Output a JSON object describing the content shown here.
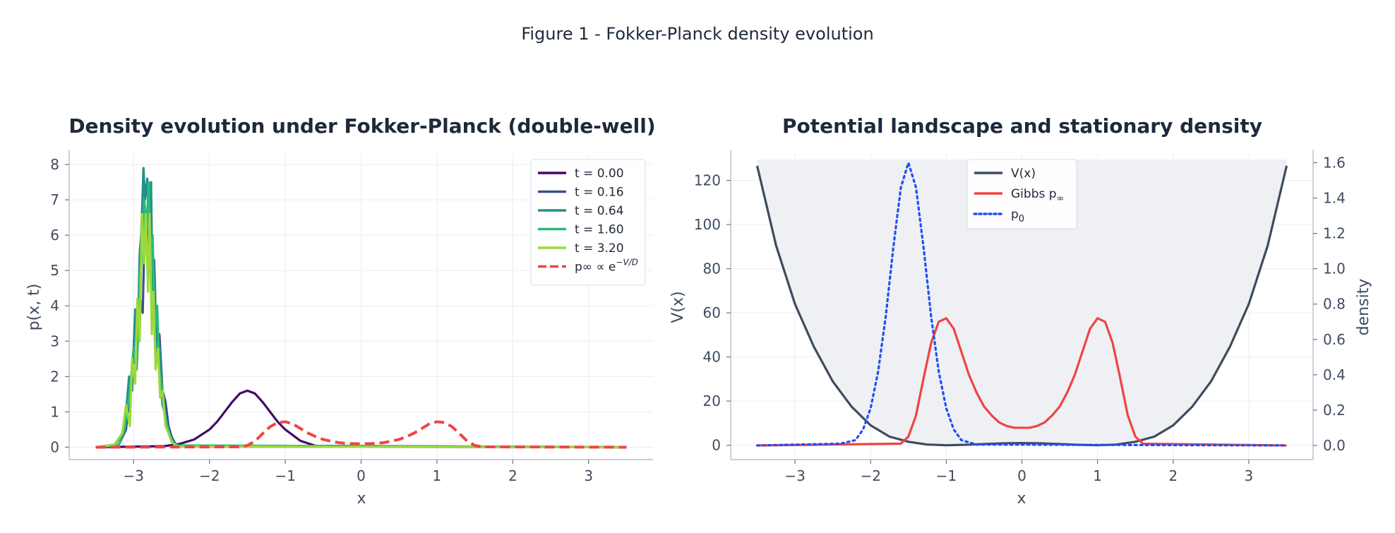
{
  "figure": {
    "suptitle": "Figure 1 - Fokker-Planck density evolution"
  },
  "colors": {
    "t0": "#440a68",
    "t1": "#3b528b",
    "t2": "#21908d",
    "t3": "#2db87a",
    "t4": "#9bd93c",
    "gibbs": "#ef4444",
    "potential": "#3f4b5e",
    "p0": "#1f4ff5",
    "fill": "#eef0f3"
  },
  "chart_data": [
    {
      "type": "line",
      "title": "Density evolution under Fokker-Planck (double-well)",
      "xlabel": "x",
      "ylabel": "p(x, t)",
      "xlim": [
        -3.85,
        3.85
      ],
      "ylim": [
        -0.35,
        8.3
      ],
      "xticks": [
        -3,
        -2,
        -1,
        0,
        1,
        2,
        3
      ],
      "xtick_labels": [
        "−3",
        "−2",
        "−1",
        "0",
        "1",
        "2",
        "3"
      ],
      "yticks": [
        0,
        1,
        2,
        3,
        4,
        5,
        6,
        7,
        8
      ],
      "ytick_labels": [
        "0",
        "1",
        "2",
        "3",
        "4",
        "5",
        "6",
        "7",
        "8"
      ],
      "grid": true,
      "legend_position": "upper right",
      "series": [
        {
          "name": "t = 0.00",
          "color_key": "t0",
          "style": "solid",
          "x": [
            -3.5,
            -2.6,
            -2.4,
            -2.2,
            -2.0,
            -1.9,
            -1.8,
            -1.7,
            -1.6,
            -1.5,
            -1.4,
            -1.3,
            -1.2,
            -1.1,
            -1.0,
            -0.8,
            -0.6,
            3.5
          ],
          "y": [
            0,
            0.03,
            0.09,
            0.22,
            0.5,
            0.72,
            1.0,
            1.28,
            1.52,
            1.6,
            1.52,
            1.28,
            1.0,
            0.72,
            0.5,
            0.18,
            0.04,
            0
          ]
        },
        {
          "name": "t = 0.16",
          "color_key": "t1",
          "style": "solid",
          "x": [
            -3.5,
            -3.2,
            -3.1,
            -3.05,
            -3.0,
            -2.96,
            -2.92,
            -2.88,
            -2.85,
            -2.82,
            -2.79,
            -2.76,
            -2.73,
            -2.7,
            -2.66,
            -2.62,
            -2.58,
            -2.54,
            -2.5,
            -2.45,
            -2.4,
            3.5
          ],
          "y": [
            0,
            0.05,
            0.5,
            1.5,
            2.6,
            2.2,
            4.3,
            3.8,
            6.6,
            5.8,
            7.4,
            4.6,
            5.3,
            3.0,
            3.2,
            1.6,
            1.3,
            0.6,
            0.3,
            0.1,
            0.02,
            0
          ]
        },
        {
          "name": "t = 0.64",
          "color_key": "t2",
          "style": "solid",
          "x": [
            -3.5,
            -3.25,
            -3.15,
            -3.1,
            -3.06,
            -3.02,
            -2.98,
            -2.95,
            -2.92,
            -2.9,
            -2.87,
            -2.85,
            -2.82,
            -2.8,
            -2.77,
            -2.75,
            -2.72,
            -2.7,
            -2.66,
            -2.62,
            -2.58,
            -2.54,
            -2.48,
            -2.4,
            3.5
          ],
          "y": [
            0,
            0.05,
            0.4,
            1.0,
            2.0,
            1.6,
            3.9,
            2.8,
            5.5,
            6.0,
            7.9,
            7.0,
            7.6,
            6.1,
            7.5,
            4.0,
            4.8,
            2.5,
            2.8,
            1.2,
            0.9,
            0.4,
            0.15,
            0.02,
            0
          ]
        },
        {
          "name": "t = 1.60",
          "color_key": "t3",
          "style": "solid",
          "x": [
            -3.5,
            -3.2,
            -3.12,
            -3.06,
            -3.0,
            -2.96,
            -2.92,
            -2.88,
            -2.86,
            -2.83,
            -2.8,
            -2.77,
            -2.75,
            -2.72,
            -2.69,
            -2.66,
            -2.62,
            -2.58,
            -2.52,
            -2.45,
            3.5
          ],
          "y": [
            0,
            0.05,
            0.5,
            1.4,
            2.8,
            2.2,
            4.8,
            5.6,
            7.0,
            6.2,
            7.5,
            5.0,
            6.0,
            3.4,
            4.0,
            2.2,
            1.6,
            0.8,
            0.3,
            0.05,
            0
          ]
        },
        {
          "name": "t = 3.20",
          "color_key": "t4",
          "style": "solid",
          "x": [
            -3.5,
            -3.25,
            -3.15,
            -3.1,
            -3.05,
            -3.02,
            -2.98,
            -2.95,
            -2.92,
            -2.89,
            -2.86,
            -2.84,
            -2.81,
            -2.79,
            -2.76,
            -2.74,
            -2.71,
            -2.68,
            -2.65,
            -2.62,
            -2.58,
            -2.54,
            -2.5,
            -2.45,
            -2.4,
            3.5
          ],
          "y": [
            0,
            0.08,
            0.4,
            1.2,
            0.6,
            2.5,
            1.8,
            4.2,
            3.0,
            6.6,
            5.2,
            6.6,
            4.4,
            6.6,
            3.2,
            4.4,
            2.2,
            2.8,
            1.4,
            1.6,
            0.6,
            0.4,
            0.15,
            0.05,
            0.02,
            0
          ]
        },
        {
          "name": "p∞ ∝ e⁻ᵛᐟD",
          "color_key": "gibbs",
          "style": "dashed",
          "x": [
            -3.5,
            -1.6,
            -1.5,
            -1.4,
            -1.3,
            -1.2,
            -1.1,
            -1.0,
            -0.9,
            -0.8,
            -0.7,
            -0.6,
            -0.5,
            -0.4,
            -0.3,
            -0.2,
            -0.1,
            0,
            0.1,
            0.2,
            0.3,
            0.4,
            0.5,
            0.6,
            0.7,
            0.8,
            0.9,
            1.0,
            1.1,
            1.2,
            1.3,
            1.4,
            1.5,
            1.6,
            3.5
          ],
          "y": [
            0,
            0.01,
            0.05,
            0.17,
            0.38,
            0.58,
            0.7,
            0.72,
            0.66,
            0.53,
            0.4,
            0.3,
            0.22,
            0.17,
            0.13,
            0.11,
            0.1,
            0.1,
            0.1,
            0.11,
            0.13,
            0.17,
            0.22,
            0.3,
            0.4,
            0.53,
            0.66,
            0.72,
            0.7,
            0.58,
            0.38,
            0.17,
            0.05,
            0.01,
            0
          ]
        }
      ],
      "legend": [
        {
          "label": "t = 0.00",
          "color_key": "t0",
          "style": "solid"
        },
        {
          "label": "t = 0.16",
          "color_key": "t1",
          "style": "solid"
        },
        {
          "label": "t = 0.64",
          "color_key": "t2",
          "style": "solid"
        },
        {
          "label": "t = 1.60",
          "color_key": "t3",
          "style": "solid"
        },
        {
          "label": "t = 3.20",
          "color_key": "t4",
          "style": "solid"
        },
        {
          "label": "p∞ ∝ e",
          "label_sup": "−V/D",
          "color_key": "gibbs",
          "style": "dashed"
        }
      ]
    },
    {
      "type": "line",
      "title": "Potential landscape and stationary density",
      "xlabel": "x",
      "ylabel": "V(x)",
      "ylabel_right": "density",
      "xlim": [
        -3.85,
        3.85
      ],
      "ylim": [
        -6.5,
        132
      ],
      "ylim_right": [
        -0.08,
        1.65
      ],
      "xticks": [
        -3,
        -2,
        -1,
        0,
        1,
        2,
        3
      ],
      "xtick_labels": [
        "−3",
        "−2",
        "−1",
        "0",
        "1",
        "2",
        "3"
      ],
      "yticks": [
        0,
        20,
        40,
        60,
        80,
        100,
        120
      ],
      "ytick_labels": [
        "0",
        "20",
        "40",
        "60",
        "80",
        "100",
        "120"
      ],
      "yticks_right": [
        0,
        0.2,
        0.4,
        0.6,
        0.8,
        1.0,
        1.2,
        1.4,
        1.6
      ],
      "ytick_labels_right": [
        "0.0",
        "0.2",
        "0.4",
        "0.6",
        "0.8",
        "1.0",
        "1.2",
        "1.4",
        "1.6"
      ],
      "grid": true,
      "legend_position": "upper center",
      "series": [
        {
          "name": "V(x)",
          "axis": "left",
          "color_key": "potential",
          "style": "solid",
          "fill": true,
          "x": [
            -3.5,
            -3.25,
            -3.0,
            -2.75,
            -2.5,
            -2.25,
            -2.0,
            -1.75,
            -1.5,
            -1.25,
            -1.0,
            -0.75,
            -0.5,
            -0.25,
            0,
            0.25,
            0.5,
            0.75,
            1.0,
            1.25,
            1.5,
            1.75,
            2.0,
            2.25,
            2.5,
            2.75,
            3.0,
            3.25,
            3.5
          ],
          "y": [
            126.6,
            90.5,
            64.0,
            44.6,
            28.9,
            17.4,
            9.0,
            3.9,
            1.56,
            0.32,
            0,
            0.19,
            0.56,
            0.88,
            1.0,
            0.88,
            0.56,
            0.19,
            0,
            0.32,
            1.56,
            3.9,
            9.0,
            17.4,
            28.9,
            44.6,
            64.0,
            90.5,
            126.6
          ]
        },
        {
          "name": "Gibbs p∞",
          "axis": "right",
          "color_key": "gibbs",
          "style": "solid",
          "x": [
            -3.5,
            -1.6,
            -1.5,
            -1.4,
            -1.3,
            -1.2,
            -1.1,
            -1.0,
            -0.9,
            -0.8,
            -0.7,
            -0.6,
            -0.5,
            -0.4,
            -0.3,
            -0.2,
            -0.1,
            0,
            0.1,
            0.2,
            0.3,
            0.4,
            0.5,
            0.6,
            0.7,
            0.8,
            0.9,
            1.0,
            1.1,
            1.2,
            1.3,
            1.4,
            1.5,
            1.6,
            3.5
          ],
          "y": [
            0,
            0.01,
            0.05,
            0.17,
            0.38,
            0.58,
            0.7,
            0.72,
            0.66,
            0.53,
            0.4,
            0.3,
            0.22,
            0.17,
            0.13,
            0.11,
            0.1,
            0.1,
            0.1,
            0.11,
            0.13,
            0.17,
            0.22,
            0.3,
            0.4,
            0.53,
            0.66,
            0.72,
            0.7,
            0.58,
            0.38,
            0.17,
            0.05,
            0.01,
            0
          ]
        },
        {
          "name": "p₀",
          "axis": "right",
          "color_key": "p0",
          "style": "dotted",
          "x": [
            -3.5,
            -2.4,
            -2.2,
            -2.1,
            -2.0,
            -1.9,
            -1.8,
            -1.7,
            -1.6,
            -1.5,
            -1.4,
            -1.3,
            -1.2,
            -1.1,
            -1.0,
            -0.9,
            -0.8,
            -0.6,
            3.5
          ],
          "y": [
            0,
            0.01,
            0.03,
            0.09,
            0.21,
            0.42,
            0.73,
            1.12,
            1.46,
            1.6,
            1.46,
            1.12,
            0.73,
            0.42,
            0.21,
            0.09,
            0.03,
            0.005,
            0
          ]
        }
      ],
      "legend": [
        {
          "label": "V(x)",
          "color_key": "potential",
          "style": "solid"
        },
        {
          "label": "Gibbs p",
          "label_sub": "∞",
          "color_key": "gibbs",
          "style": "solid"
        },
        {
          "label": "p",
          "label_sub": "0",
          "color_key": "p0",
          "style": "dotted"
        }
      ]
    }
  ]
}
